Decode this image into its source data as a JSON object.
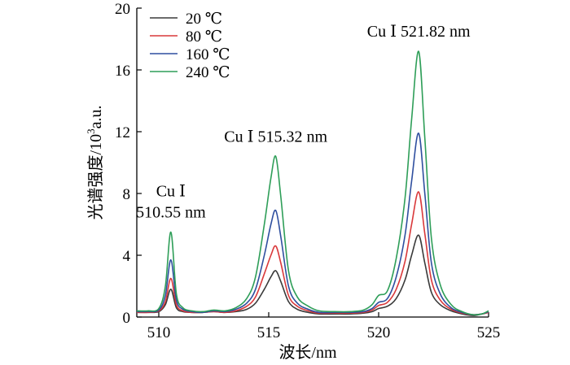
{
  "chart_data": {
    "type": "line",
    "xlabel": "波长/nm",
    "ylabel_prefix": "光谱强度/10",
    "ylabel_sup": "3",
    "ylabel_suffix": "a.u.",
    "xlim": [
      509,
      525
    ],
    "ylim": [
      0,
      20
    ],
    "xticks": [
      510,
      515,
      520,
      525
    ],
    "yticks": [
      0,
      4,
      8,
      12,
      16,
      20
    ],
    "legend": "top-left",
    "series": [
      {
        "name": "20 ℃",
        "color": "#3a3a3a",
        "x": [
          509.0,
          509.5,
          510.0,
          510.3,
          510.55,
          510.8,
          511.1,
          511.5,
          512.0,
          512.5,
          513.0,
          513.5,
          514.0,
          514.4,
          514.8,
          515.1,
          515.32,
          515.55,
          515.9,
          516.3,
          516.8,
          517.3,
          518.0,
          518.7,
          519.3,
          519.7,
          520.0,
          520.4,
          520.8,
          521.2,
          521.5,
          521.82,
          522.1,
          522.4,
          522.8,
          523.3,
          523.8,
          524.3,
          524.7,
          525.0
        ],
        "y": [
          0.3,
          0.3,
          0.35,
          0.8,
          1.8,
          0.6,
          0.35,
          0.3,
          0.3,
          0.35,
          0.3,
          0.35,
          0.5,
          0.9,
          1.8,
          2.6,
          3.0,
          2.3,
          1.0,
          0.5,
          0.3,
          0.2,
          0.2,
          0.2,
          0.25,
          0.35,
          0.55,
          0.7,
          1.2,
          2.4,
          4.0,
          5.3,
          3.5,
          1.6,
          0.8,
          0.4,
          0.2,
          0.1,
          0.2,
          0.3
        ]
      },
      {
        "name": "80 ℃",
        "color": "#d9383a",
        "x": [
          509.0,
          509.5,
          510.0,
          510.3,
          510.55,
          510.8,
          511.1,
          511.5,
          512.0,
          512.5,
          513.0,
          513.5,
          514.0,
          514.4,
          514.8,
          515.1,
          515.32,
          515.55,
          515.9,
          516.3,
          516.8,
          517.3,
          518.0,
          518.7,
          519.3,
          519.7,
          520.0,
          520.4,
          520.8,
          521.2,
          521.5,
          521.82,
          522.1,
          522.4,
          522.8,
          523.3,
          523.8,
          524.3,
          524.7,
          525.0
        ],
        "y": [
          0.3,
          0.3,
          0.4,
          1.0,
          2.5,
          0.8,
          0.4,
          0.3,
          0.3,
          0.35,
          0.3,
          0.4,
          0.7,
          1.3,
          2.8,
          4.0,
          4.6,
          3.5,
          1.4,
          0.7,
          0.4,
          0.25,
          0.25,
          0.25,
          0.3,
          0.45,
          0.75,
          0.95,
          1.8,
          3.6,
          6.0,
          8.1,
          5.4,
          2.4,
          1.1,
          0.5,
          0.25,
          0.15,
          0.2,
          0.3
        ]
      },
      {
        "name": "160 ℃",
        "color": "#2f4f9f",
        "x": [
          509.0,
          509.5,
          510.0,
          510.3,
          510.55,
          510.8,
          511.1,
          511.5,
          512.0,
          512.5,
          513.0,
          513.5,
          514.0,
          514.4,
          514.8,
          515.1,
          515.32,
          515.55,
          515.9,
          516.3,
          516.8,
          517.3,
          518.0,
          518.7,
          519.3,
          519.7,
          520.0,
          520.4,
          520.8,
          521.2,
          521.5,
          521.82,
          522.1,
          522.4,
          522.8,
          523.3,
          523.8,
          524.3,
          524.7,
          525.0
        ],
        "y": [
          0.35,
          0.35,
          0.45,
          1.4,
          3.7,
          1.1,
          0.5,
          0.35,
          0.3,
          0.4,
          0.35,
          0.5,
          0.9,
          1.8,
          4.0,
          6.0,
          6.9,
          5.2,
          2.0,
          0.9,
          0.5,
          0.3,
          0.3,
          0.3,
          0.35,
          0.55,
          0.95,
          1.2,
          2.6,
          5.3,
          8.8,
          11.9,
          8.0,
          3.5,
          1.5,
          0.6,
          0.3,
          0.15,
          0.2,
          0.35
        ]
      },
      {
        "name": "240 ℃",
        "color": "#2e9e58",
        "x": [
          509.0,
          509.5,
          510.0,
          510.3,
          510.55,
          510.8,
          511.1,
          511.5,
          512.0,
          512.5,
          513.0,
          513.5,
          514.0,
          514.4,
          514.8,
          515.1,
          515.32,
          515.55,
          515.9,
          516.3,
          516.8,
          517.3,
          518.0,
          518.7,
          519.3,
          519.7,
          520.0,
          520.4,
          520.8,
          521.2,
          521.5,
          521.82,
          522.1,
          522.4,
          522.8,
          523.3,
          523.8,
          524.3,
          524.7,
          525.0
        ],
        "y": [
          0.4,
          0.4,
          0.55,
          2.0,
          5.5,
          1.5,
          0.6,
          0.4,
          0.35,
          0.45,
          0.4,
          0.6,
          1.2,
          2.6,
          6.0,
          9.0,
          10.4,
          7.8,
          3.0,
          1.3,
          0.7,
          0.4,
          0.35,
          0.35,
          0.45,
          0.8,
          1.4,
          1.7,
          3.8,
          7.7,
          12.8,
          17.2,
          11.6,
          5.1,
          2.1,
          0.8,
          0.35,
          0.15,
          0.2,
          0.4
        ]
      }
    ],
    "annotations": [
      {
        "lines": [
          "Cu Ⅰ",
          "510.55 nm"
        ],
        "x": 510.55,
        "y": 5.5
      },
      {
        "lines": [
          "Cu Ⅰ  515.32 nm"
        ],
        "x": 515.32,
        "y": 10.4
      },
      {
        "lines": [
          "Cu Ⅰ  521.82 nm"
        ],
        "x": 521.82,
        "y": 17.2
      }
    ]
  }
}
